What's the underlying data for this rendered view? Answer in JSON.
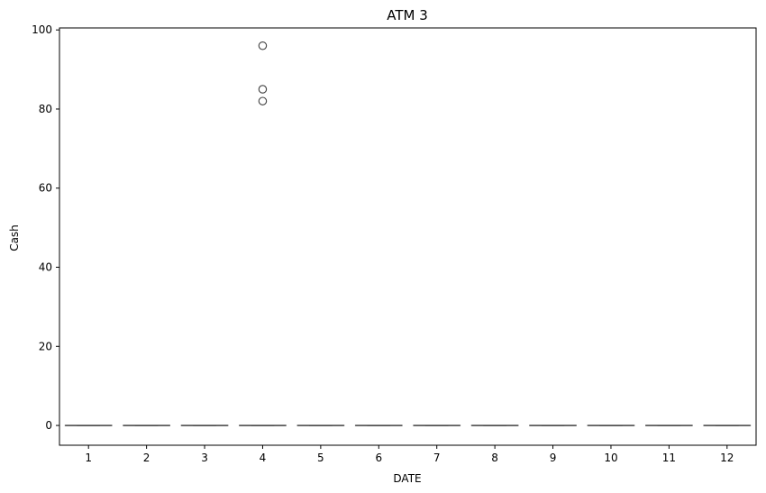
{
  "chart_data": {
    "type": "box",
    "title": "ATM 3",
    "xlabel": "DATE",
    "ylabel": "Cash",
    "categories": [
      "1",
      "2",
      "3",
      "4",
      "5",
      "6",
      "7",
      "8",
      "9",
      "10",
      "11",
      "12"
    ],
    "ylim": [
      -5,
      100.5
    ],
    "yticks": [
      0,
      20,
      40,
      60,
      80,
      100
    ],
    "boxes": [
      {
        "category": "1",
        "q1": 0,
        "median": 0,
        "q3": 0,
        "whisker_low": 0,
        "whisker_high": 0,
        "outliers": []
      },
      {
        "category": "2",
        "q1": 0,
        "median": 0,
        "q3": 0,
        "whisker_low": 0,
        "whisker_high": 0,
        "outliers": []
      },
      {
        "category": "3",
        "q1": 0,
        "median": 0,
        "q3": 0,
        "whisker_low": 0,
        "whisker_high": 0,
        "outliers": []
      },
      {
        "category": "4",
        "q1": 0,
        "median": 0,
        "q3": 0,
        "whisker_low": 0,
        "whisker_high": 0,
        "outliers": [
          96,
          85,
          82
        ]
      },
      {
        "category": "5",
        "q1": 0,
        "median": 0,
        "q3": 0,
        "whisker_low": 0,
        "whisker_high": 0,
        "outliers": []
      },
      {
        "category": "6",
        "q1": 0,
        "median": 0,
        "q3": 0,
        "whisker_low": 0,
        "whisker_high": 0,
        "outliers": []
      },
      {
        "category": "7",
        "q1": 0,
        "median": 0,
        "q3": 0,
        "whisker_low": 0,
        "whisker_high": 0,
        "outliers": []
      },
      {
        "category": "8",
        "q1": 0,
        "median": 0,
        "q3": 0,
        "whisker_low": 0,
        "whisker_high": 0,
        "outliers": []
      },
      {
        "category": "9",
        "q1": 0,
        "median": 0,
        "q3": 0,
        "whisker_low": 0,
        "whisker_high": 0,
        "outliers": []
      },
      {
        "category": "10",
        "q1": 0,
        "median": 0,
        "q3": 0,
        "whisker_low": 0,
        "whisker_high": 0,
        "outliers": []
      },
      {
        "category": "11",
        "q1": 0,
        "median": 0,
        "q3": 0,
        "whisker_low": 0,
        "whisker_high": 0,
        "outliers": []
      },
      {
        "category": "12",
        "q1": 0,
        "median": 0,
        "q3": 0,
        "whisker_low": 0,
        "whisker_high": 0,
        "outliers": []
      }
    ],
    "grid": false,
    "legend": "none",
    "colors": {
      "box_line": "#3f3f3f",
      "axis": "#000000",
      "background": "#ffffff"
    }
  }
}
